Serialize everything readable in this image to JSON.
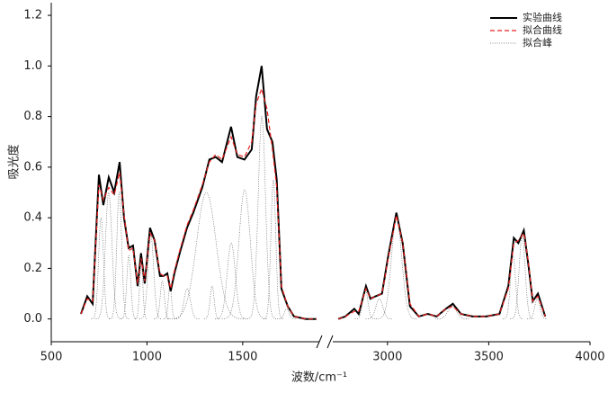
{
  "chart_data": {
    "type": "line",
    "xlabel": "波数/cm⁻¹",
    "ylabel": "吸光度",
    "ylim": [
      -0.09,
      1.25
    ],
    "yticks": [
      {
        "value": 0,
        "label": "0.0"
      },
      0.2,
      0.4,
      0.6,
      0.8,
      {
        "value": 1,
        "label": "1.0"
      },
      1.2
    ],
    "x_segments": [
      {
        "xlim": [
          500,
          1900
        ],
        "xticks": [
          500,
          1000,
          1500
        ]
      },
      {
        "xlim": [
          2730,
          4000
        ],
        "xticks": [
          3000,
          3500,
          4000
        ]
      }
    ],
    "legend": "upper right",
    "x": [
      655,
      688,
      716,
      749,
      772,
      800,
      829,
      857,
      880,
      904,
      927,
      951,
      969,
      988,
      1016,
      1040,
      1068,
      1087,
      1106,
      1124,
      1143,
      1171,
      1209,
      1242,
      1289,
      1326,
      1359,
      1392,
      1439,
      1472,
      1509,
      1547,
      1570,
      1599,
      1627,
      1655,
      1678,
      1702,
      1735,
      1768,
      1829,
      1885,
      2757,
      2792,
      2836,
      2858,
      2894,
      2916,
      2942,
      2973,
      3004,
      3044,
      3075,
      3111,
      3155,
      3199,
      3243,
      3288,
      3323,
      3363,
      3420,
      3487,
      3553,
      3597,
      3624,
      3646,
      3673,
      3695,
      3717,
      3743,
      3779
    ],
    "series": [
      {
        "name": "实验曲线",
        "color": "#000000",
        "style": "solid",
        "values": [
          0.02,
          0.09,
          0.06,
          0.57,
          0.45,
          0.56,
          0.5,
          0.62,
          0.4,
          0.28,
          0.29,
          0.13,
          0.26,
          0.14,
          0.36,
          0.31,
          0.17,
          0.17,
          0.18,
          0.11,
          0.18,
          0.26,
          0.36,
          0.42,
          0.52,
          0.63,
          0.64,
          0.62,
          0.76,
          0.64,
          0.63,
          0.67,
          0.88,
          1.0,
          0.75,
          0.7,
          0.55,
          0.12,
          0.05,
          0.01,
          0.0,
          0.0,
          0.0,
          0.01,
          0.04,
          0.02,
          0.13,
          0.08,
          0.09,
          0.1,
          0.25,
          0.42,
          0.3,
          0.05,
          0.01,
          0.02,
          0.01,
          0.04,
          0.06,
          0.02,
          0.01,
          0.01,
          0.02,
          0.13,
          0.32,
          0.3,
          0.35,
          0.22,
          0.07,
          0.1,
          0.01
        ]
      },
      {
        "name": "拟合曲线",
        "color": "#e8211e",
        "style": "dashed",
        "values": [
          0.02,
          0.08,
          0.07,
          0.53,
          0.47,
          0.52,
          0.49,
          0.58,
          0.41,
          0.27,
          0.28,
          0.14,
          0.24,
          0.15,
          0.34,
          0.31,
          0.18,
          0.17,
          0.17,
          0.12,
          0.19,
          0.27,
          0.37,
          0.43,
          0.53,
          0.62,
          0.65,
          0.63,
          0.72,
          0.65,
          0.64,
          0.7,
          0.85,
          0.91,
          0.83,
          0.67,
          0.52,
          0.13,
          0.05,
          0.01,
          0.0,
          0.0,
          0.0,
          0.01,
          0.03,
          0.03,
          0.12,
          0.08,
          0.09,
          0.1,
          0.24,
          0.41,
          0.3,
          0.06,
          0.01,
          0.02,
          0.01,
          0.04,
          0.05,
          0.02,
          0.01,
          0.01,
          0.02,
          0.12,
          0.3,
          0.31,
          0.34,
          0.23,
          0.07,
          0.09,
          0.01
        ]
      }
    ],
    "peaks": {
      "name": "拟合峰",
      "color": "#666666",
      "center": [
        760,
        800,
        855,
        905,
        970,
        1020,
        1080,
        1120,
        1210,
        1310,
        1340,
        1440,
        1510,
        1600,
        1660,
        1730,
        2890,
        2960,
        3045,
        3320,
        3620,
        3665,
        3740
      ],
      "height": [
        0.4,
        0.5,
        0.5,
        0.25,
        0.22,
        0.33,
        0.15,
        0.13,
        0.12,
        0.5,
        0.13,
        0.3,
        0.51,
        0.8,
        0.55,
        0.04,
        0.12,
        0.08,
        0.4,
        0.05,
        0.25,
        0.33,
        0.08
      ],
      "width": [
        30,
        40,
        30,
        25,
        20,
        35,
        25,
        20,
        40,
        120,
        25,
        50,
        70,
        45,
        30,
        30,
        30,
        40,
        60,
        50,
        30,
        35,
        30
      ]
    }
  }
}
